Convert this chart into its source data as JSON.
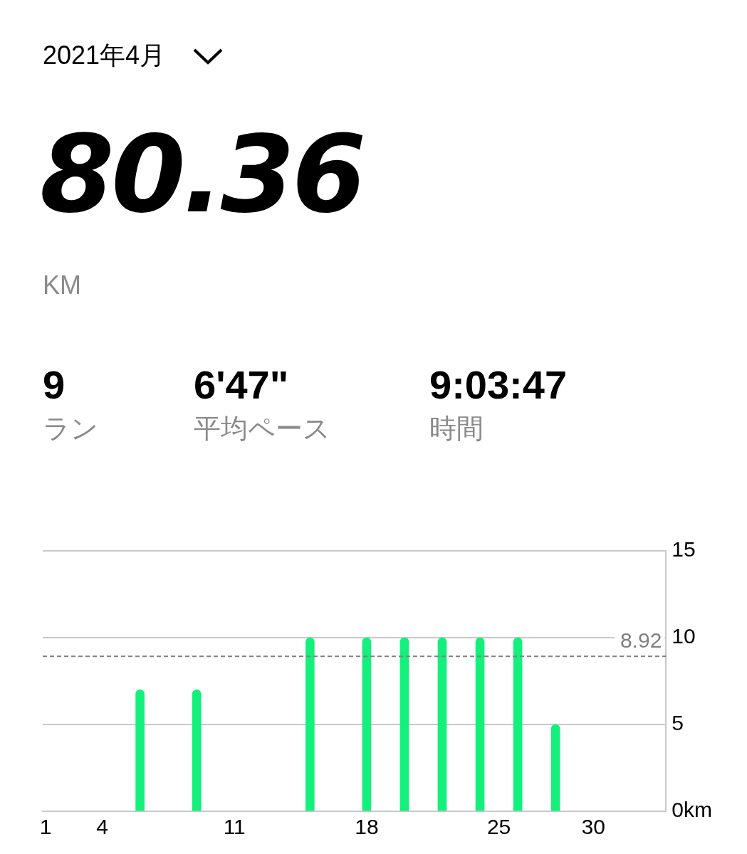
{
  "chart_data": {
    "type": "bar",
    "title": "2021年4月",
    "annotations": [
      "80.36",
      "KM",
      "9",
      "ラン",
      "6'47\"",
      "平均ペース",
      "9:03:47",
      "時間"
    ],
    "x": [
      6,
      9,
      15,
      18,
      20,
      22,
      24,
      26,
      28
    ],
    "values": [
      7,
      7,
      10,
      10,
      10,
      10,
      10,
      10,
      5
    ],
    "color": "#14f07c",
    "xlim": [
      0.85,
      33.85
    ],
    "xticks": [
      1,
      4,
      11,
      18,
      25,
      30
    ],
    "ylim": [
      0,
      15
    ],
    "yticks": [
      {
        "value": 0,
        "label": "0km"
      },
      5,
      10,
      15
    ],
    "grid": "y",
    "ref_lines": [
      {
        "axis": "y",
        "value": 8.92,
        "label": "8.92",
        "color": "#808080",
        "line_style": "dashed"
      }
    ]
  }
}
